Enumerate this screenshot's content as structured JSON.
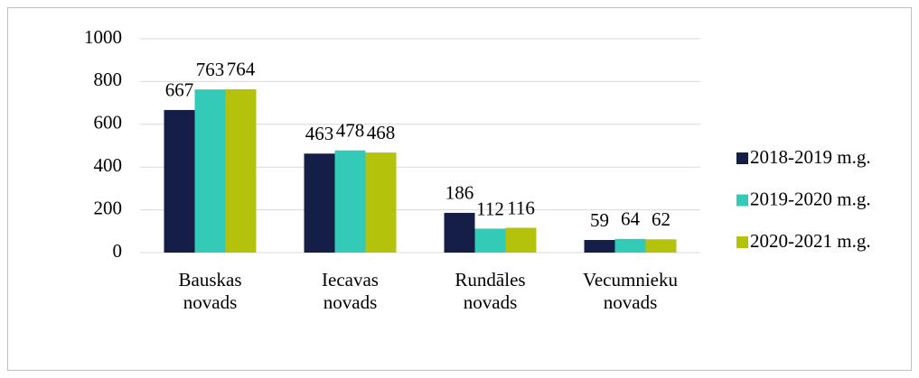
{
  "chart_data": {
    "type": "bar",
    "categories": [
      "Bauskas novads",
      "Iecavas novads",
      "Rundāles novads",
      "Vecumnieku novads"
    ],
    "series": [
      {
        "name": "2018-2019 m.g.",
        "color": "#141e46",
        "values": [
          667,
          463,
          186,
          59
        ]
      },
      {
        "name": "2019-2020 m.g.",
        "color": "#33cbb8",
        "values": [
          763,
          478,
          112,
          64
        ]
      },
      {
        "name": "2020-2021 m.g.",
        "color": "#b5c20c",
        "values": [
          764,
          468,
          116,
          62
        ]
      }
    ],
    "ylim": [
      0,
      1000
    ],
    "yticks": [
      0,
      200,
      400,
      600,
      800,
      1000
    ],
    "grid": true,
    "legend": "right"
  }
}
